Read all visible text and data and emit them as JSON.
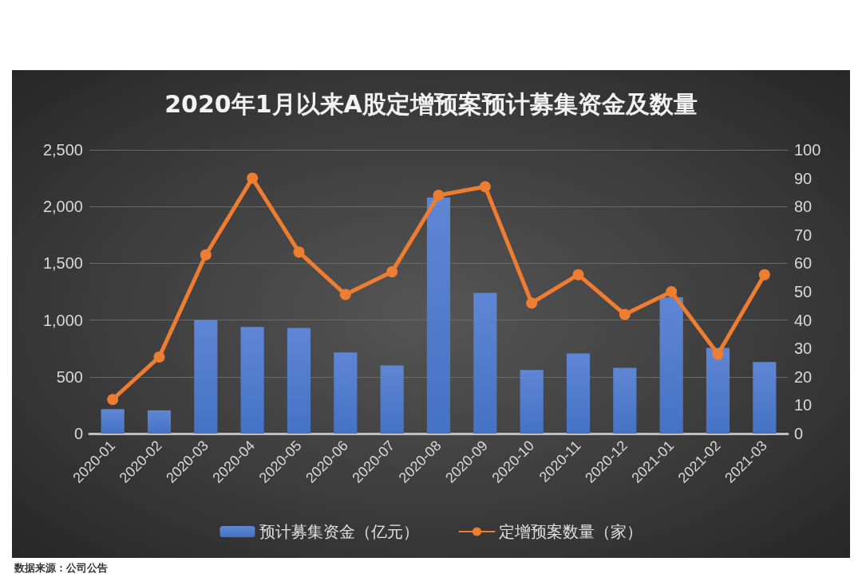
{
  "chart_data": {
    "type": "bar",
    "title": "2020年1月以来A股定增预案预计募集资金及数量",
    "categories": [
      "2020-01",
      "2020-02",
      "2020-03",
      "2020-04",
      "2020-05",
      "2020-06",
      "2020-07",
      "2020-08",
      "2020-09",
      "2020-10",
      "2020-11",
      "2020-12",
      "2021-01",
      "2021-02",
      "2021-03"
    ],
    "series": [
      {
        "name": "预计募集资金（亿元）",
        "color": "#4472c4",
        "values": [
          215,
          205,
          1000,
          940,
          930,
          715,
          600,
          2080,
          1240,
          560,
          705,
          580,
          1200,
          755,
          630
        ]
      },
      {
        "name": "定增预案数量（家）",
        "type": "line",
        "axis": "y2",
        "color": "#ed7d31",
        "marker": "circle",
        "values": [
          12,
          27,
          63,
          90,
          64,
          49,
          57,
          84,
          87,
          46,
          56,
          42,
          50,
          28,
          56
        ]
      }
    ],
    "ylim": [
      0,
      2500
    ],
    "yticks": [
      {
        "value": 0,
        "label": "0"
      },
      {
        "value": 500,
        "label": "500"
      },
      {
        "value": 1000,
        "label": "1,000"
      },
      {
        "value": 1500,
        "label": "1,500"
      },
      {
        "value": 2000,
        "label": "2,000"
      },
      {
        "value": 2500,
        "label": "2,500"
      }
    ],
    "y2lim": [
      0,
      100
    ],
    "y2ticks": [
      0,
      10,
      20,
      30,
      40,
      50,
      60,
      70,
      80,
      90,
      100
    ],
    "grid": "y",
    "legend": "bottom",
    "annotations": [
      "数据来源：公司公告"
    ]
  }
}
